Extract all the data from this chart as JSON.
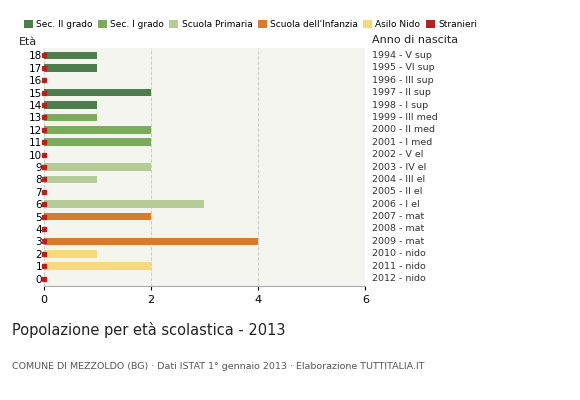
{
  "ages": [
    18,
    17,
    16,
    15,
    14,
    13,
    12,
    11,
    10,
    9,
    8,
    7,
    6,
    5,
    4,
    3,
    2,
    1,
    0
  ],
  "anno_nascita": [
    "1994 - V sup",
    "1995 - VI sup",
    "1996 - III sup",
    "1997 - II sup",
    "1998 - I sup",
    "1999 - III med",
    "2000 - II med",
    "2001 - I med",
    "2002 - V el",
    "2003 - IV el",
    "2004 - III el",
    "2005 - II el",
    "2006 - I el",
    "2007 - mat",
    "2008 - mat",
    "2009 - mat",
    "2010 - nido",
    "2011 - nido",
    "2012 - nido"
  ],
  "bar_values": [
    1,
    1,
    0,
    2,
    1,
    1,
    2,
    2,
    0,
    2,
    1,
    0,
    3,
    2,
    0,
    4,
    1,
    2,
    0
  ],
  "bar_colors": [
    "#4d7c4d",
    "#4d7c4d",
    "#4d7c4d",
    "#4d7c4d",
    "#4d7c4d",
    "#7aab5e",
    "#7aab5e",
    "#7aab5e",
    "#b5cc99",
    "#b5cc99",
    "#b5cc99",
    "#b5cc99",
    "#b5cc99",
    "#d97b2e",
    "#d97b2e",
    "#d97b2e",
    "#f5d97a",
    "#f5d97a",
    "#f5d97a"
  ],
  "stranieri_color": "#b22222",
  "legend_labels": [
    "Sec. II grado",
    "Sec. I grado",
    "Scuola Primaria",
    "Scuola dell'Infanzia",
    "Asilo Nido",
    "Stranieri"
  ],
  "legend_colors": [
    "#4d7c4d",
    "#7aab5e",
    "#b5cc99",
    "#d97b2e",
    "#f5d97a",
    "#b22222"
  ],
  "title": "Popolazione per età scolastica - 2013",
  "subtitle": "COMUNE DI MEZZOLDO (BG) · Dati ISTAT 1° gennaio 2013 · Elaborazione TUTTITALIA.IT",
  "xlabel_left": "Età",
  "xlabel_right": "Anno di nascita",
  "xlim": [
    0,
    6
  ],
  "xticks": [
    0,
    2,
    4,
    6
  ],
  "bg_color": "#ffffff",
  "plot_bg_color": "#f5f5f0",
  "grid_color": "#cccccc",
  "bar_height": 0.62
}
